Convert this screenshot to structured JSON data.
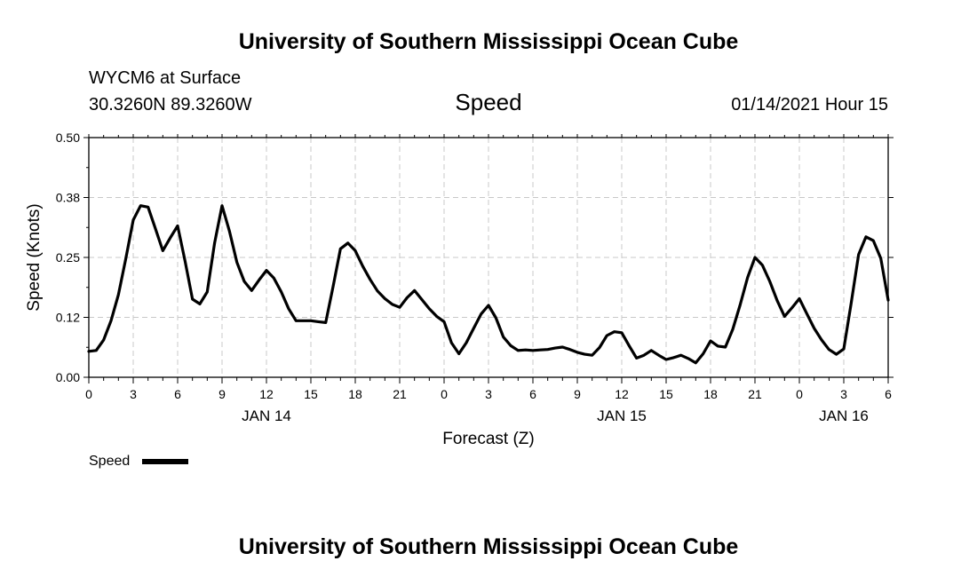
{
  "header": {
    "title": "University of Southern Mississippi Ocean Cube",
    "station": "WYCM6 at Surface",
    "location": "30.3260N 89.3260W",
    "variable": "Speed",
    "timestamp": "01/14/2021 Hour 15"
  },
  "footer": {
    "title": "University of Southern Mississippi Ocean Cube"
  },
  "chart_data": {
    "type": "line",
    "title": "Speed",
    "xlabel": "Forecast (Z)",
    "ylabel": "Speed (Knots)",
    "xlim": [
      0,
      54
    ],
    "ylim": [
      0,
      0.5
    ],
    "yticks": [
      "0.00",
      "0.12",
      "0.25",
      "0.38",
      "0.50"
    ],
    "xtick_labels": [
      "0",
      "3",
      "6",
      "9",
      "12",
      "15",
      "18",
      "21",
      "0",
      "3",
      "6",
      "9",
      "12",
      "15",
      "18",
      "21",
      "0",
      "3",
      "6"
    ],
    "day_labels": [
      {
        "label": "JAN 14",
        "x": 12
      },
      {
        "label": "JAN 15",
        "x": 36
      },
      {
        "label": "JAN 16",
        "x": 51
      }
    ],
    "grid": true,
    "legend": "bottom-left",
    "series": [
      {
        "name": "Speed",
        "color": "#000000",
        "x": [
          0,
          0.5,
          1,
          1.5,
          2,
          2.5,
          3,
          3.5,
          4,
          4.5,
          5,
          5.5,
          6,
          6.5,
          7,
          7.5,
          8,
          8.5,
          9,
          9.5,
          10,
          10.5,
          11,
          11.5,
          12,
          12.5,
          13,
          13.5,
          14,
          14.5,
          15,
          15.5,
          16,
          16.5,
          17,
          17.5,
          18,
          18.5,
          19,
          19.5,
          20,
          20.5,
          21,
          21.5,
          22,
          22.5,
          23,
          23.5,
          24,
          24.5,
          25,
          25.5,
          26,
          26.5,
          27,
          27.5,
          28,
          28.5,
          29,
          29.5,
          30,
          30.5,
          31,
          31.5,
          32,
          32.5,
          33,
          33.5,
          34,
          34.5,
          35,
          35.5,
          36,
          36.5,
          37,
          37.5,
          38,
          38.5,
          39,
          39.5,
          40,
          40.5,
          41,
          41.5,
          42,
          42.5,
          43,
          43.5,
          44,
          44.5,
          45,
          45.5,
          46,
          46.5,
          47,
          47.5,
          48,
          48.5,
          49,
          49.5,
          50,
          50.5,
          51,
          51.5,
          52,
          52.5,
          53,
          53.5,
          54
        ],
        "values": [
          0.054,
          0.056,
          0.078,
          0.118,
          0.172,
          0.248,
          0.328,
          0.358,
          0.355,
          0.31,
          0.264,
          0.291,
          0.316,
          0.243,
          0.163,
          0.153,
          0.178,
          0.281,
          0.358,
          0.305,
          0.24,
          0.2,
          0.181,
          0.203,
          0.223,
          0.207,
          0.178,
          0.143,
          0.118,
          0.118,
          0.118,
          0.116,
          0.114,
          0.189,
          0.268,
          0.28,
          0.264,
          0.232,
          0.204,
          0.18,
          0.164,
          0.152,
          0.146,
          0.166,
          0.181,
          0.162,
          0.143,
          0.127,
          0.116,
          0.072,
          0.049,
          0.072,
          0.102,
          0.132,
          0.15,
          0.124,
          0.084,
          0.066,
          0.056,
          0.057,
          0.056,
          0.057,
          0.058,
          0.061,
          0.063,
          0.058,
          0.052,
          0.048,
          0.046,
          0.062,
          0.087,
          0.095,
          0.093,
          0.066,
          0.04,
          0.046,
          0.056,
          0.046,
          0.037,
          0.041,
          0.046,
          0.039,
          0.03,
          0.049,
          0.076,
          0.065,
          0.063,
          0.1,
          0.151,
          0.208,
          0.25,
          0.234,
          0.2,
          0.16,
          0.127,
          0.145,
          0.164,
          0.133,
          0.102,
          0.078,
          0.058,
          0.048,
          0.059,
          0.154,
          0.256,
          0.293,
          0.285,
          0.248,
          0.161
        ]
      }
    ]
  }
}
